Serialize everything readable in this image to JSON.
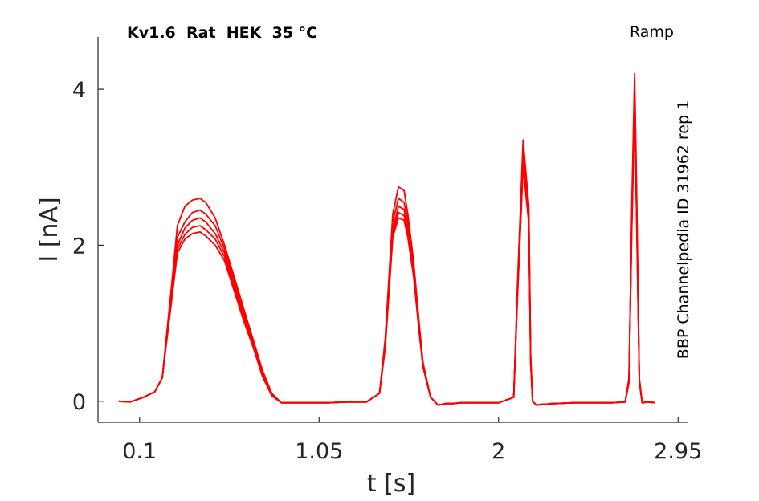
{
  "chart_data": {
    "type": "line",
    "title": "Kv1.6  Rat  HEK  35 °C",
    "protocol": "Ramp",
    "side_label": "BBP Channelpedia ID 31962 rep 1",
    "xlabel": "t [s]",
    "ylabel": "I [nA]",
    "xticks": [
      0.1,
      1.05,
      2,
      2.95
    ],
    "xtick_labels": [
      "0.1",
      "1.05",
      "2",
      "2.95"
    ],
    "yticks": [
      0,
      2,
      4
    ],
    "ytick_labels": [
      "0",
      "2",
      "4"
    ],
    "xlim": [
      -0.12,
      3.0
    ],
    "ylim": [
      -0.27,
      4.67
    ],
    "grid": false,
    "legend": "none",
    "color": "#ff0000",
    "x": [
      -0.01,
      0.05,
      0.12,
      0.18,
      0.22,
      0.27,
      0.3,
      0.34,
      0.38,
      0.42,
      0.45,
      0.5,
      0.55,
      0.6,
      0.65,
      0.7,
      0.75,
      0.8,
      0.85,
      0.9,
      0.95,
      1.0,
      1.05,
      1.1,
      1.2,
      1.3,
      1.37,
      1.4,
      1.44,
      1.47,
      1.5,
      1.52,
      1.55,
      1.58,
      1.6,
      1.64,
      1.68,
      1.72,
      1.76,
      1.8,
      1.9,
      2.0,
      2.08,
      2.1,
      2.13,
      2.16,
      2.17,
      2.18,
      2.2,
      2.23,
      2.25,
      2.28,
      2.3,
      2.4,
      2.5,
      2.6,
      2.67,
      2.69,
      2.705,
      2.72,
      2.73,
      2.745,
      2.76,
      2.79,
      2.83
    ],
    "series": [
      {
        "values": [
          0.0,
          -0.01,
          0.05,
          0.12,
          0.3,
          1.5,
          2.25,
          2.5,
          2.58,
          2.6,
          2.55,
          2.35,
          2.0,
          1.6,
          1.2,
          0.8,
          0.4,
          0.1,
          -0.02,
          -0.02,
          -0.02,
          -0.02,
          -0.02,
          -0.02,
          -0.01,
          -0.01,
          0.1,
          0.8,
          2.4,
          2.75,
          2.7,
          2.4,
          1.8,
          1.0,
          0.5,
          0.05,
          -0.05,
          -0.03,
          -0.03,
          -0.02,
          -0.02,
          -0.02,
          0.05,
          1.5,
          3.35,
          2.5,
          0.6,
          0.0,
          -0.05,
          -0.04,
          -0.04,
          -0.03,
          -0.03,
          -0.02,
          -0.02,
          -0.02,
          -0.01,
          0.3,
          2.5,
          4.2,
          2.8,
          0.3,
          -0.02,
          -0.01,
          -0.02
        ]
      },
      {
        "values": [
          0.0,
          -0.01,
          0.05,
          0.12,
          0.3,
          1.45,
          2.1,
          2.3,
          2.42,
          2.45,
          2.4,
          2.25,
          1.95,
          1.55,
          1.15,
          0.78,
          0.38,
          0.09,
          -0.02,
          -0.02,
          -0.02,
          -0.02,
          -0.02,
          -0.02,
          -0.01,
          -0.01,
          0.1,
          0.75,
          2.3,
          2.6,
          2.55,
          2.3,
          1.75,
          0.95,
          0.48,
          0.05,
          -0.05,
          -0.03,
          -0.03,
          -0.02,
          -0.02,
          -0.02,
          0.05,
          1.45,
          3.2,
          2.4,
          0.55,
          0.0,
          -0.05,
          -0.04,
          -0.04,
          -0.03,
          -0.03,
          -0.02,
          -0.02,
          -0.02,
          -0.01,
          0.28,
          2.4,
          3.95,
          2.6,
          0.28,
          -0.02,
          -0.01,
          -0.02
        ]
      },
      {
        "values": [
          0.0,
          -0.01,
          0.05,
          0.12,
          0.3,
          1.4,
          2.0,
          2.22,
          2.32,
          2.35,
          2.3,
          2.15,
          1.9,
          1.5,
          1.1,
          0.75,
          0.36,
          0.08,
          -0.02,
          -0.02,
          -0.02,
          -0.02,
          -0.02,
          -0.02,
          -0.01,
          -0.01,
          0.1,
          0.72,
          2.2,
          2.5,
          2.46,
          2.2,
          1.7,
          0.92,
          0.46,
          0.05,
          -0.05,
          -0.03,
          -0.03,
          -0.02,
          -0.02,
          -0.02,
          0.05,
          1.4,
          3.1,
          2.35,
          0.52,
          0.0,
          -0.05,
          -0.04,
          -0.04,
          -0.03,
          -0.03,
          -0.02,
          -0.02,
          -0.02,
          -0.01,
          0.26,
          2.3,
          3.85,
          2.5,
          0.26,
          -0.02,
          -0.01,
          -0.02
        ]
      },
      {
        "values": [
          0.0,
          -0.01,
          0.05,
          0.12,
          0.3,
          1.35,
          1.95,
          2.14,
          2.23,
          2.25,
          2.2,
          2.08,
          1.85,
          1.46,
          1.07,
          0.72,
          0.34,
          0.08,
          -0.02,
          -0.02,
          -0.02,
          -0.02,
          -0.02,
          -0.02,
          -0.01,
          -0.01,
          0.1,
          0.7,
          2.15,
          2.42,
          2.38,
          2.15,
          1.65,
          0.9,
          0.45,
          0.05,
          -0.05,
          -0.03,
          -0.03,
          -0.02,
          -0.02,
          -0.02,
          0.05,
          1.36,
          3.05,
          2.3,
          0.5,
          0.0,
          -0.05,
          -0.04,
          -0.04,
          -0.03,
          -0.03,
          -0.02,
          -0.02,
          -0.02,
          -0.01,
          0.25,
          2.25,
          3.8,
          2.45,
          0.25,
          -0.02,
          -0.01,
          -0.02
        ]
      },
      {
        "values": [
          0.0,
          -0.01,
          0.05,
          0.12,
          0.3,
          1.3,
          1.9,
          2.08,
          2.15,
          2.17,
          2.12,
          2.0,
          1.8,
          1.42,
          1.04,
          0.7,
          0.32,
          0.07,
          -0.02,
          -0.02,
          -0.02,
          -0.02,
          -0.02,
          -0.02,
          -0.01,
          -0.01,
          0.1,
          0.68,
          2.1,
          2.35,
          2.32,
          2.1,
          1.6,
          0.88,
          0.44,
          0.05,
          -0.05,
          -0.03,
          -0.03,
          -0.02,
          -0.02,
          -0.02,
          0.05,
          1.33,
          3.0,
          2.28,
          0.48,
          0.0,
          -0.05,
          -0.04,
          -0.04,
          -0.03,
          -0.03,
          -0.02,
          -0.02,
          -0.02,
          -0.01,
          0.24,
          2.2,
          3.75,
          2.4,
          0.24,
          -0.02,
          -0.01,
          -0.02
        ]
      }
    ]
  }
}
